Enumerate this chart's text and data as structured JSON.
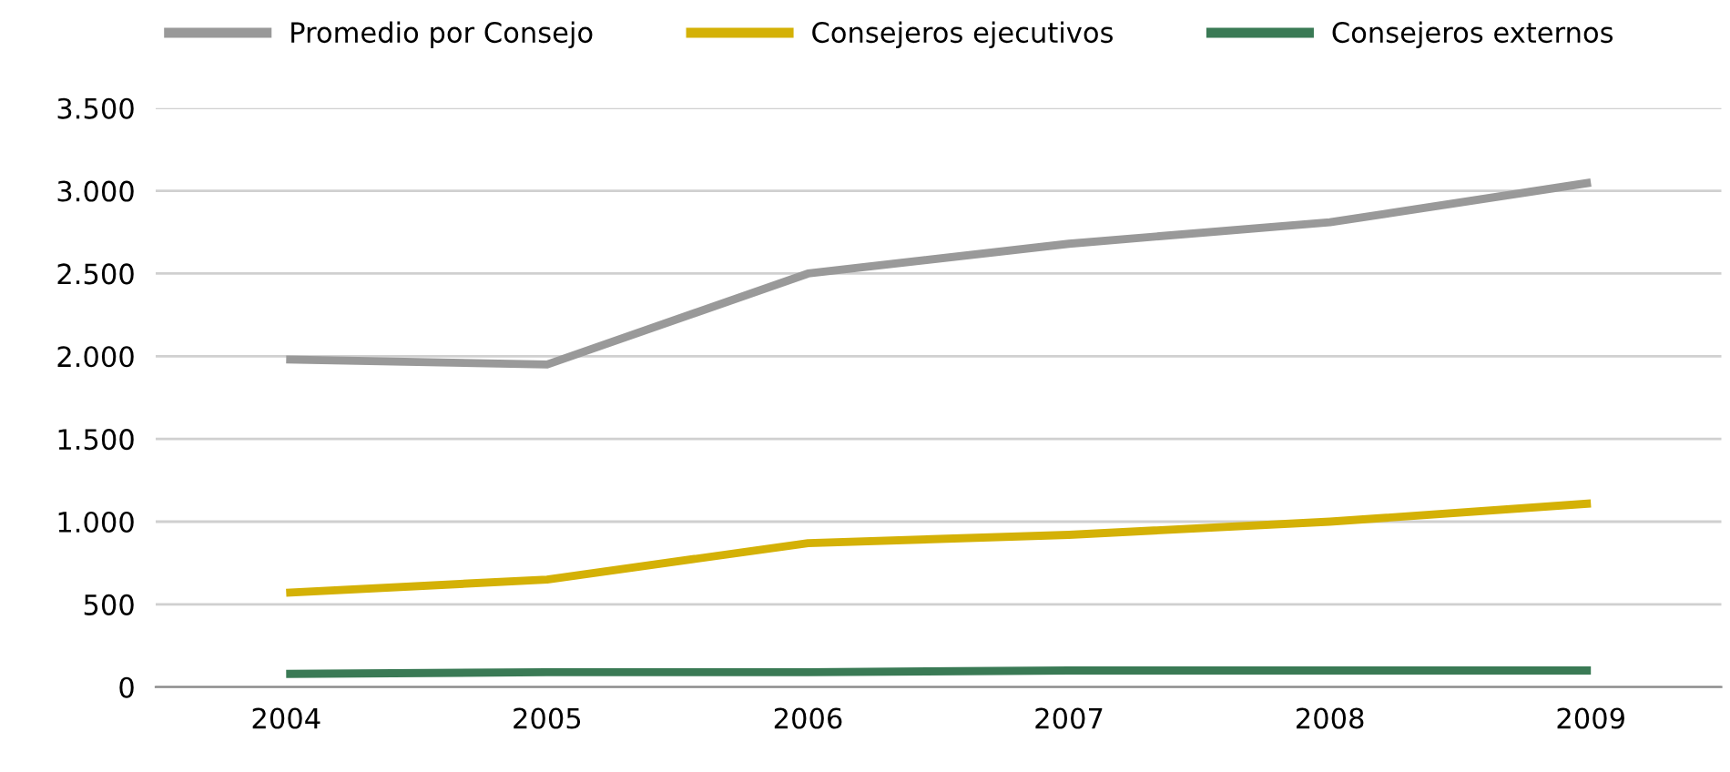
{
  "chart_data": {
    "type": "line",
    "categories": [
      "2004",
      "2005",
      "2006",
      "2007",
      "2008",
      "2009"
    ],
    "series": [
      {
        "name": "Promedio por Consejo",
        "color": "#999999",
        "values": [
          1980,
          1950,
          2500,
          2680,
          2810,
          3050
        ]
      },
      {
        "name": "Consejeros ejecutivos",
        "color": "#d4b106",
        "values": [
          570,
          650,
          870,
          920,
          1000,
          1110
        ]
      },
      {
        "name": "Consejeros externos",
        "color": "#3a7a55",
        "values": [
          80,
          90,
          90,
          100,
          100,
          100
        ]
      }
    ],
    "ylim": [
      0,
      3500
    ],
    "yticks": [
      {
        "value": 0,
        "label": "0"
      },
      {
        "value": 500,
        "label": "500"
      },
      {
        "value": 1000,
        "label": "1.000"
      },
      {
        "value": 1500,
        "label": "1.500"
      },
      {
        "value": 2000,
        "label": "2.000"
      },
      {
        "value": 2500,
        "label": "2.500"
      },
      {
        "value": 3000,
        "label": "3.000"
      },
      {
        "value": 3500,
        "label": "3.500"
      }
    ],
    "grid": "y",
    "legend": "top",
    "marker": "none",
    "line_style": "solid"
  }
}
